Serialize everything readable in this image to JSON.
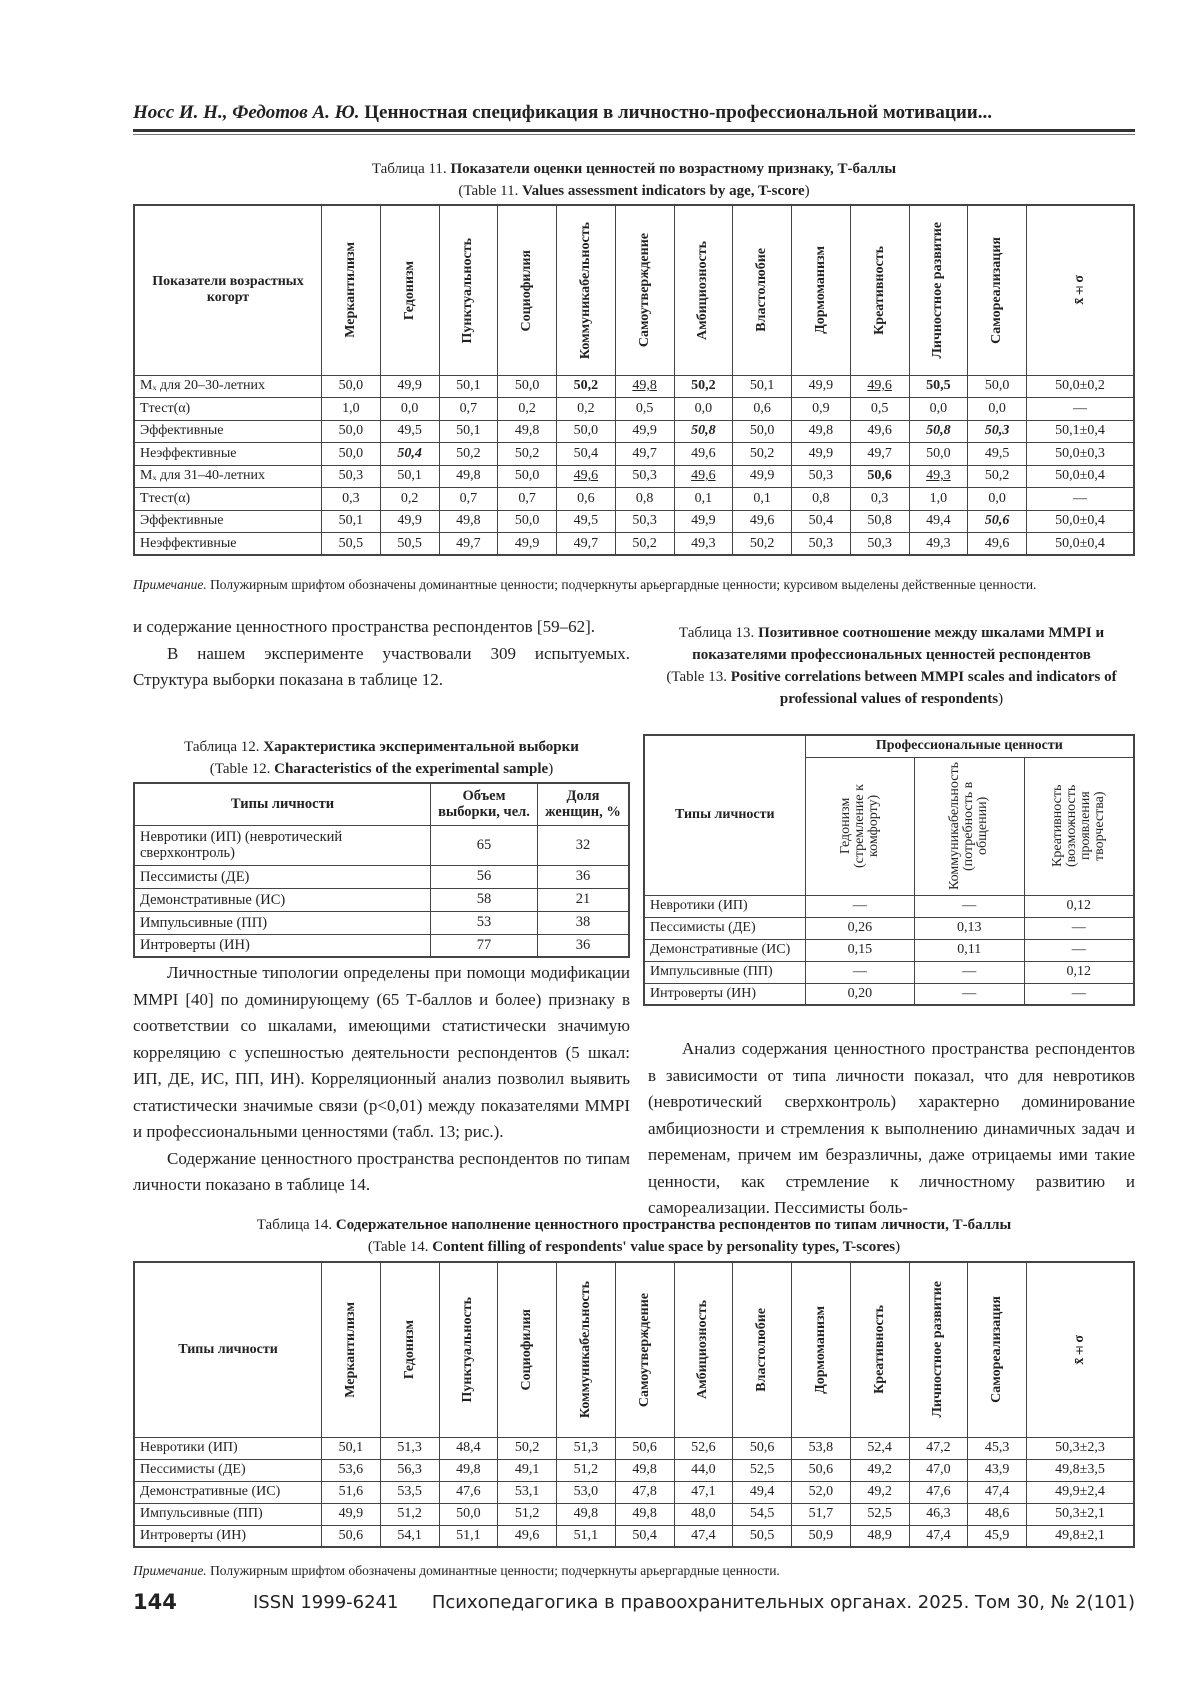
{
  "running_head": {
    "authors": "Носс И. Н., Федотов А. Ю.",
    "title": "Ценностная спецификация в личностно-профессиональной мотивации..."
  },
  "table11": {
    "caption_ru_prefix": "Таблица 11.",
    "caption_ru": "Показатели оценки ценностей по возрастному признаку, Т-баллы",
    "caption_en_prefix": "(Table 11.",
    "caption_en": "Values assessment indicators by age, T-score",
    "caption_en_suffix": ")",
    "corner": "Показатели возрастных когорт",
    "columns": [
      "Меркантилизм",
      "Гедонизм",
      "Пунктуальность",
      "Социофилия",
      "Коммуникабельность",
      "Самоутверждение",
      "Амбициозность",
      "Властолюбие",
      "Дормоманизм",
      "Креативность",
      "Личностное развитие",
      "Самореализация",
      "x̄±σ"
    ],
    "rows": [
      {
        "label": "Mₓ для 20–30-летних",
        "values": [
          "50,0",
          "49,9",
          "50,1",
          "50,0",
          "50,2",
          "49,8",
          "50,2",
          "50,1",
          "49,9",
          "49,6",
          "50,5",
          "50,0",
          "50,0±0,2"
        ],
        "styles": [
          "",
          "",
          "",
          "",
          "b",
          "u",
          "b",
          "",
          "",
          "u",
          "b",
          "",
          ""
        ]
      },
      {
        "label": "Ттест(α)",
        "values": [
          "1,0",
          "0,0",
          "0,7",
          "0,2",
          "0,2",
          "0,5",
          "0,0",
          "0,6",
          "0,9",
          "0,5",
          "0,0",
          "0,0",
          "—"
        ],
        "styles": [
          "",
          "",
          "",
          "",
          "",
          "",
          "",
          "",
          "",
          "",
          "",
          "",
          ""
        ]
      },
      {
        "label": "Эффективные",
        "values": [
          "50,0",
          "49,5",
          "50,1",
          "49,8",
          "50,0",
          "49,9",
          "50,8",
          "50,0",
          "49,8",
          "49,6",
          "50,8",
          "50,3",
          "50,1±0,4"
        ],
        "styles": [
          "",
          "",
          "",
          "",
          "",
          "",
          "bi",
          "",
          "",
          "",
          "bi",
          "bi",
          ""
        ]
      },
      {
        "label": "Неэффективные",
        "values": [
          "50,0",
          "50,4",
          "50,2",
          "50,2",
          "50,4",
          "49,7",
          "49,6",
          "50,2",
          "49,9",
          "49,7",
          "50,0",
          "49,5",
          "50,0±0,3"
        ],
        "styles": [
          "",
          "bi",
          "",
          "",
          "",
          "",
          "",
          "",
          "",
          "",
          "",
          "",
          ""
        ]
      },
      {
        "label": "Mₓ для 31–40-летних",
        "values": [
          "50,3",
          "50,1",
          "49,8",
          "50,0",
          "49,6",
          "50,3",
          "49,6",
          "49,9",
          "50,3",
          "50,6",
          "49,3",
          "50,2",
          "50,0±0,4"
        ],
        "styles": [
          "",
          "",
          "",
          "",
          "u",
          "",
          "u",
          "",
          "",
          "b",
          "u",
          "",
          ""
        ]
      },
      {
        "label": "Ттест(α)",
        "values": [
          "0,3",
          "0,2",
          "0,7",
          "0,7",
          "0,6",
          "0,8",
          "0,1",
          "0,1",
          "0,8",
          "0,3",
          "1,0",
          "0,0",
          "—"
        ],
        "styles": [
          "",
          "",
          "",
          "",
          "",
          "",
          "",
          "",
          "",
          "",
          "",
          "",
          ""
        ]
      },
      {
        "label": "Эффективные",
        "values": [
          "50,1",
          "49,9",
          "49,8",
          "50,0",
          "49,5",
          "50,3",
          "49,9",
          "49,6",
          "50,4",
          "50,8",
          "49,4",
          "50,6",
          "50,0±0,4"
        ],
        "styles": [
          "",
          "",
          "",
          "",
          "",
          "",
          "",
          "",
          "",
          "",
          "",
          "bi",
          ""
        ]
      },
      {
        "label": "Неэффективные",
        "values": [
          "50,5",
          "50,5",
          "49,7",
          "49,9",
          "49,7",
          "50,2",
          "49,3",
          "50,2",
          "50,3",
          "50,3",
          "49,3",
          "49,6",
          "50,0±0,4"
        ],
        "styles": [
          "",
          "",
          "",
          "",
          "",
          "",
          "",
          "",
          "",
          "",
          "",
          "",
          ""
        ]
      }
    ],
    "note_prefix": "Примечание.",
    "note": "Полужирным шрифтом обозначены доминантные ценности; подчеркнуты арьергардные ценности; курсивом выделены действенные ценности."
  },
  "left_text": {
    "p1": "и содержание ценностного пространства респондентов [59–62].",
    "p2": "В нашем эксперименте участвовали 309 испытуемых. Структура выборки показана в таблице 12.",
    "p3": "Личностные типологии определены при помощи модификации MMPI [40] по доминирующему (65 Т-баллов и более) признаку в соответствии со шкалами, имеющими статистически значимую корреляцию с успешностью деятельности респондентов (5 шкал: ИП, ДЕ, ИС, ПП, ИН). Корреляционный анализ позволил выявить статистически значимые связи (p<0,01) между показателями MMPI и профессиональными ценностями (табл. 13; рис.).",
    "p4": "Содержание ценностного пространства респондентов по типам личности показано в таблице 14."
  },
  "table12": {
    "caption_ru_prefix": "Таблица 12.",
    "caption_ru": "Характеристика экспериментальной выборки",
    "caption_en_prefix": "(Table 12.",
    "caption_en": "Characteristics of the experimental sample",
    "caption_en_suffix": ")",
    "headers": [
      "Типы личности",
      "Объем выборки, чел.",
      "Доля женщин, %"
    ],
    "rows": [
      {
        "label": "Невротики (ИП) (невротический сверхконтроль)",
        "values": [
          "65",
          "32"
        ]
      },
      {
        "label": "Пессимисты (ДЕ)",
        "values": [
          "56",
          "36"
        ]
      },
      {
        "label": "Демонстративные (ИС)",
        "values": [
          "58",
          "21"
        ]
      },
      {
        "label": "Импульсивные (ПП)",
        "values": [
          "53",
          "38"
        ]
      },
      {
        "label": "Интроверты (ИН)",
        "values": [
          "77",
          "36"
        ]
      }
    ]
  },
  "table13": {
    "caption_ru_prefix": "Таблица 13.",
    "caption_ru": "Позитивное соотношение между шкалами MMPI и показателями профессиональных ценностей респондентов",
    "caption_en_prefix": "(Table 13.",
    "caption_en": "Positive correlations between MMPI scales and indicators of professional values of respondents",
    "caption_en_suffix": ")",
    "corner": "Типы личности",
    "group_header": "Профессиональные ценности",
    "columns": [
      "Гедонизм (стремление к комфорту)",
      "Коммуникабельность (потребность в общении)",
      "Креативность (возможность проявления творчества)"
    ],
    "rows": [
      {
        "label": "Невротики (ИП)",
        "values": [
          "—",
          "—",
          "0,12"
        ]
      },
      {
        "label": "Пессимисты (ДЕ)",
        "values": [
          "0,26",
          "0,13",
          "—"
        ]
      },
      {
        "label": "Демонстративные (ИС)",
        "values": [
          "0,15",
          "0,11",
          "—"
        ]
      },
      {
        "label": "Импульсивные (ПП)",
        "values": [
          "—",
          "—",
          "0,12"
        ]
      },
      {
        "label": "Интроверты (ИН)",
        "values": [
          "0,20",
          "—",
          "—"
        ]
      }
    ]
  },
  "right_text": {
    "p1": "Анализ содержания ценностного пространства респондентов в зависимости от типа личности показал, что для невротиков (невротический сверхконтроль) характерно доминирование амбициозности и стремления к выполнению динамичных задач и переменам, причем им безразличны, даже отрицаемы ими такие ценности, как стремление к личностному развитию и самореализации. Пессимисты боль-"
  },
  "table14": {
    "caption_ru_prefix": "Таблица 14.",
    "caption_ru": "Содержательное наполнение ценностного пространства респондентов по типам личности, Т-баллы",
    "caption_en_prefix": "(Table 14.",
    "caption_en": "Content filling of respondents' value space by personality types, T-scores",
    "caption_en_suffix": ")",
    "corner": "Типы личности",
    "columns": [
      "Меркантилизм",
      "Гедонизм",
      "Пунктуальность",
      "Социофилия",
      "Коммуникабельность",
      "Самоутверждение",
      "Амбициозность",
      "Властолюбие",
      "Дормоманизм",
      "Креативность",
      "Личностное развитие",
      "Самореализация",
      "x̄±σ"
    ],
    "rows": [
      {
        "label": "Невротики (ИП)",
        "values": [
          "50,1",
          "51,3",
          "48,4",
          "50,2",
          "51,3",
          "50,6",
          "52,6",
          "50,6",
          "53,8",
          "52,4",
          "47,2",
          "45,3",
          "50,3±2,3"
        ]
      },
      {
        "label": "Пессимисты (ДЕ)",
        "values": [
          "53,6",
          "56,3",
          "49,8",
          "49,1",
          "51,2",
          "49,8",
          "44,0",
          "52,5",
          "50,6",
          "49,2",
          "47,0",
          "43,9",
          "49,8±3,5"
        ]
      },
      {
        "label": "Демонстративные (ИС)",
        "values": [
          "51,6",
          "53,5",
          "47,6",
          "53,1",
          "53,0",
          "47,8",
          "47,1",
          "49,4",
          "52,0",
          "49,2",
          "47,6",
          "47,4",
          "49,9±2,4"
        ]
      },
      {
        "label": "Импульсивные (ПП)",
        "values": [
          "49,9",
          "51,2",
          "50,0",
          "51,2",
          "49,8",
          "49,8",
          "48,0",
          "54,5",
          "51,7",
          "52,5",
          "46,3",
          "48,6",
          "50,3±2,1"
        ]
      },
      {
        "label": "Интроверты (ИН)",
        "values": [
          "50,6",
          "54,1",
          "51,1",
          "49,6",
          "51,1",
          "50,4",
          "47,4",
          "50,5",
          "50,9",
          "48,9",
          "47,4",
          "45,9",
          "49,8±2,1"
        ]
      }
    ],
    "note_prefix": "Примечание.",
    "note": "Полужирным шрифтом обозначены доминантные ценности; подчеркнуты арьергардные ценности."
  },
  "footer": {
    "page_number": "144",
    "issn": "ISSN 1999-6241",
    "journal": "Психопедагогика в правоохранительных органах. 2025. Том 30, № 2(101)"
  }
}
